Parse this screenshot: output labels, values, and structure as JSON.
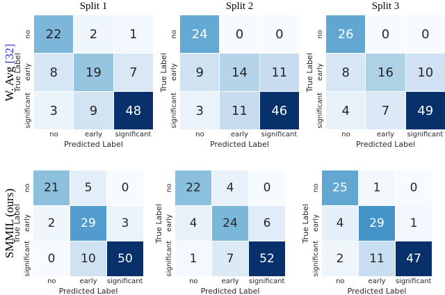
{
  "header": {
    "column_titles": [
      "Split 1",
      "Split 2",
      "Split 3"
    ]
  },
  "rows": [
    {
      "label": "W. Avg ",
      "citation": "[32]"
    },
    {
      "label": "SMMIL (ours)",
      "citation": ""
    }
  ],
  "axes": {
    "xlabel": "Predicted Label",
    "ylabel": "True Label",
    "x_ticks": [
      "no",
      "early",
      "significant"
    ],
    "y_ticks": [
      "no",
      "early",
      "significant"
    ]
  },
  "colors": {
    "citation_blue": "#2e3bc9",
    "cell_text_dark": "#262626",
    "cell_text_light": "#ffffff",
    "colormap": "Blues",
    "colormap_anchors": [
      "#f7fbff",
      "#deebf7",
      "#c6dbef",
      "#9ecae1",
      "#6baed6",
      "#4292c6",
      "#2171b5",
      "#08519c",
      "#08306b"
    ]
  },
  "chart_data": [
    {
      "type": "heatmap",
      "method": "W. Avg [32]",
      "split": "Split 1",
      "x_categories": [
        "no",
        "early",
        "significant"
      ],
      "y_categories": [
        "no",
        "early",
        "significant"
      ],
      "values": [
        [
          22,
          2,
          1
        ],
        [
          8,
          19,
          7
        ],
        [
          3,
          9,
          48
        ]
      ],
      "xlabel": "Predicted Label",
      "ylabel": "True Label",
      "colormap": "Blues",
      "vmin": 0,
      "vmax": 48
    },
    {
      "type": "heatmap",
      "method": "W. Avg [32]",
      "split": "Split 2",
      "x_categories": [
        "no",
        "early",
        "significant"
      ],
      "y_categories": [
        "no",
        "early",
        "significant"
      ],
      "values": [
        [
          24,
          0,
          0
        ],
        [
          9,
          14,
          11
        ],
        [
          3,
          11,
          46
        ]
      ],
      "xlabel": "Predicted Label",
      "ylabel": "True Label",
      "colormap": "Blues",
      "vmin": 0,
      "vmax": 46
    },
    {
      "type": "heatmap",
      "method": "W. Avg [32]",
      "split": "Split 3",
      "x_categories": [
        "no",
        "early",
        "significant"
      ],
      "y_categories": [
        "no",
        "early",
        "significant"
      ],
      "values": [
        [
          26,
          0,
          0
        ],
        [
          8,
          16,
          10
        ],
        [
          4,
          7,
          49
        ]
      ],
      "xlabel": "Predicted Label",
      "ylabel": "True Label",
      "colormap": "Blues",
      "vmin": 0,
      "vmax": 49
    },
    {
      "type": "heatmap",
      "method": "SMMIL (ours)",
      "split": "Split 1",
      "x_categories": [
        "no",
        "early",
        "significant"
      ],
      "y_categories": [
        "no",
        "early",
        "significant"
      ],
      "values": [
        [
          21,
          5,
          0
        ],
        [
          2,
          29,
          3
        ],
        [
          0,
          10,
          50
        ]
      ],
      "xlabel": "Predicted Label",
      "ylabel": "True Label",
      "colormap": "Blues",
      "vmin": 0,
      "vmax": 50
    },
    {
      "type": "heatmap",
      "method": "SMMIL (ours)",
      "split": "Split 2",
      "x_categories": [
        "no",
        "early",
        "significant"
      ],
      "y_categories": [
        "no",
        "early",
        "significant"
      ],
      "values": [
        [
          22,
          4,
          0
        ],
        [
          4,
          24,
          6
        ],
        [
          1,
          7,
          52
        ]
      ],
      "xlabel": "Predicted Label",
      "ylabel": "True Label",
      "colormap": "Blues",
      "vmin": 0,
      "vmax": 52
    },
    {
      "type": "heatmap",
      "method": "SMMIL (ours)",
      "split": "Split 3",
      "x_categories": [
        "no",
        "early",
        "significant"
      ],
      "y_categories": [
        "no",
        "early",
        "significant"
      ],
      "values": [
        [
          25,
          1,
          0
        ],
        [
          4,
          29,
          1
        ],
        [
          2,
          11,
          47
        ]
      ],
      "xlabel": "Predicted Label",
      "ylabel": "True Label",
      "colormap": "Blues",
      "vmin": 0,
      "vmax": 47
    }
  ]
}
